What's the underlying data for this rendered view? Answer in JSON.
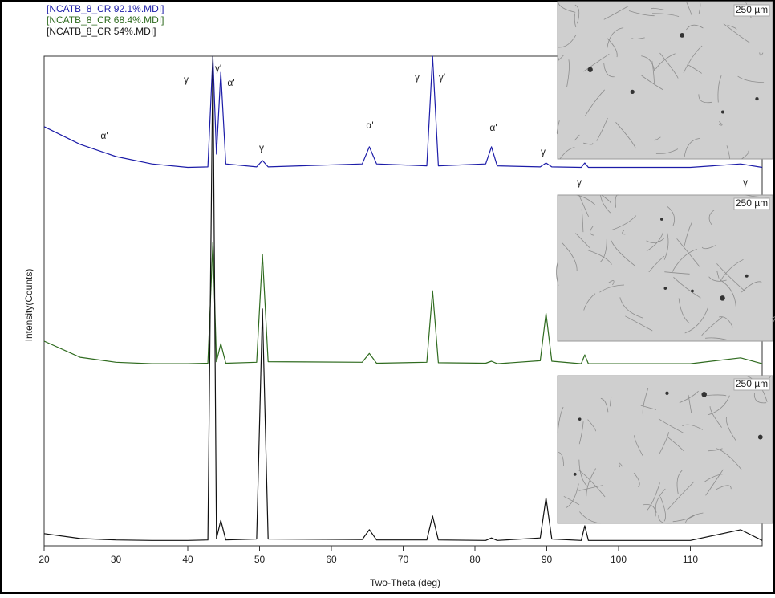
{
  "chart_data": {
    "type": "line",
    "x_label": "Two-Theta (deg)",
    "y_label": "Intensity(Counts)",
    "xlim": [
      20,
      120
    ],
    "xticks": [
      20,
      30,
      40,
      50,
      60,
      70,
      80,
      90,
      100,
      110
    ],
    "ylim": [
      0,
      100
    ],
    "x": [
      20,
      25,
      30,
      35,
      40,
      42.8,
      43.5,
      44.0,
      44.6,
      45.3,
      49.6,
      50.4,
      51.2,
      64.3,
      65.3,
      66.3,
      73.3,
      74.1,
      74.9,
      81.5,
      82.3,
      83.1,
      89.1,
      89.9,
      90.7,
      94.8,
      95.3,
      95.8,
      110,
      117,
      120
    ],
    "series": [
      {
        "name": "[NCATB_8_CR 92.1%.MDI]",
        "color": "#1c1ca8",
        "values": [
          85.6,
          82,
          79.5,
          78,
          77.3,
          77.4,
          100,
          80,
          96.7,
          78,
          77.4,
          78.7,
          77.4,
          78,
          81.5,
          78,
          77.6,
          100,
          77.6,
          78,
          81.5,
          77.6,
          77.4,
          78.2,
          77.4,
          77.3,
          78.2,
          77.3,
          77.3,
          78,
          77.3
        ]
      },
      {
        "name": "[NCATB_8_CR 68.4%.MDI]",
        "color": "#2f6b1f",
        "values": [
          41.8,
          38.5,
          37.5,
          37.2,
          37.2,
          37.3,
          62,
          37.6,
          41.3,
          37.3,
          37.5,
          59.5,
          37.6,
          37.5,
          39.3,
          37.3,
          37.5,
          52.1,
          37.4,
          37.3,
          37.7,
          37.2,
          37.8,
          47.5,
          37.7,
          37.2,
          39,
          37.2,
          37.2,
          38.4,
          37.2
        ]
      },
      {
        "name": "[NCATB_8_CR 54%.MDI]",
        "color": "#111111",
        "values": [
          2.5,
          1.5,
          1.2,
          1.1,
          1.1,
          1.2,
          100,
          1.5,
          5.2,
          1.2,
          1.4,
          48.4,
          1.4,
          1.3,
          3.3,
          1.2,
          1.2,
          6.1,
          1.2,
          1.1,
          1.6,
          1.1,
          1.6,
          9.8,
          1.4,
          1.1,
          4.1,
          1.1,
          1.1,
          3.3,
          1.1
        ]
      }
    ],
    "annotations": [
      "α'",
      "γ",
      "γ'",
      "α'",
      "γ",
      "α'",
      "γ",
      "γ'",
      "α'",
      "γ",
      "γ",
      "γ"
    ],
    "insets": [
      {
        "scale_label": "250 µm"
      },
      {
        "scale_label": "250 µm"
      },
      {
        "scale_label": "250 µm"
      }
    ]
  }
}
